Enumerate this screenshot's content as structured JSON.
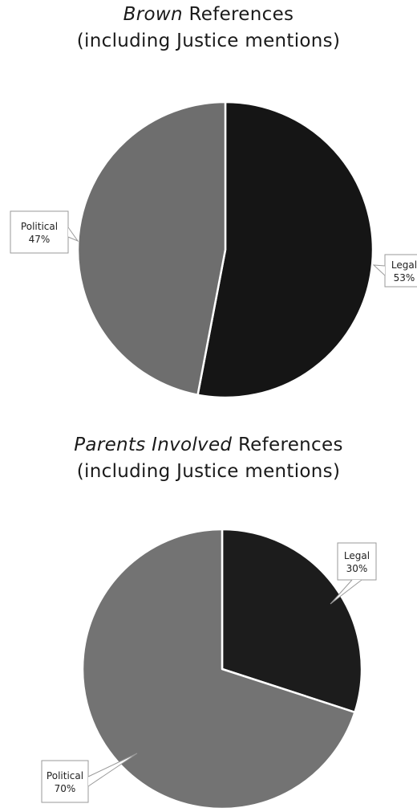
{
  "chart_data": [
    {
      "type": "pie",
      "title_italic": "Brown",
      "title_rest": "References",
      "subtitle": "(including Justice mentions)",
      "slices": [
        {
          "label": "Legal",
          "value": 53,
          "value_label": "53%",
          "color": "#151515"
        },
        {
          "label": "Political",
          "value": 47,
          "value_label": "47%",
          "color": "#6e6e6e"
        }
      ]
    },
    {
      "type": "pie",
      "title_italic": "Parents Involved",
      "title_rest": "References",
      "subtitle": "(including Justice mentions)",
      "slices": [
        {
          "label": "Legal",
          "value": 30,
          "value_label": "30%",
          "color": "#1c1c1c"
        },
        {
          "label": "Political",
          "value": 70,
          "value_label": "70%",
          "color": "#737373"
        }
      ]
    }
  ]
}
